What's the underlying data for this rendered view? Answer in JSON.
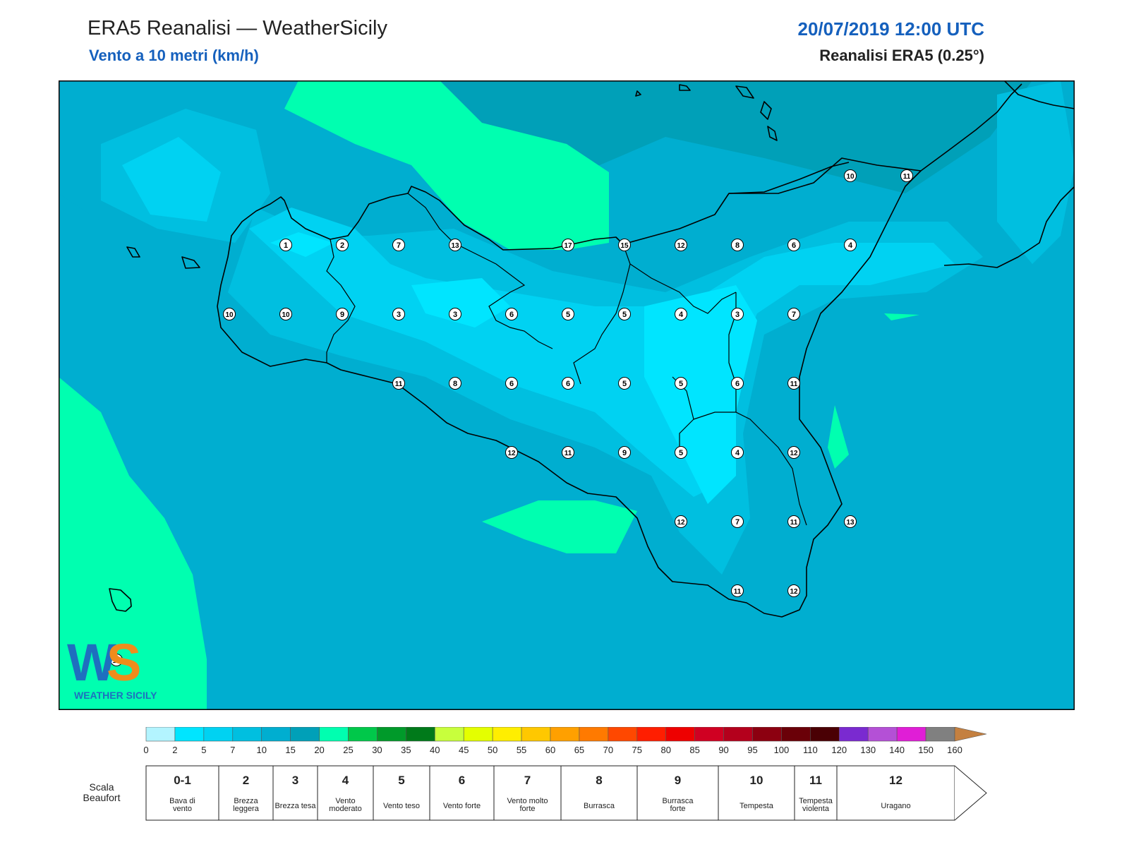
{
  "header": {
    "title": "ERA5 Reanalisi — WeatherSicily",
    "subtitle": "Vento a 10 metri (km/h)",
    "datetime": "20/07/2019 12:00 UTC",
    "model": "Reanalisi ERA5 (0.25°)"
  },
  "logo": {
    "text": "WEATHER SICILY",
    "letters": "WS"
  },
  "stations": [
    {
      "v": "1",
      "row": 0,
      "col": 0
    },
    {
      "v": "2",
      "row": 0,
      "col": 1
    },
    {
      "v": "7",
      "row": 0,
      "col": 2
    },
    {
      "v": "13",
      "row": 0,
      "col": 3
    },
    {
      "v": "17",
      "row": 0,
      "col": 5
    },
    {
      "v": "15",
      "row": 0,
      "col": 6
    },
    {
      "v": "12",
      "row": 0,
      "col": 7
    },
    {
      "v": "8",
      "row": 0,
      "col": 8
    },
    {
      "v": "6",
      "row": 0,
      "col": 9
    },
    {
      "v": "4",
      "row": 0,
      "col": 10
    },
    {
      "v": "10",
      "row": 1,
      "col": -1
    },
    {
      "v": "10",
      "row": 1,
      "col": 0
    },
    {
      "v": "9",
      "row": 1,
      "col": 1
    },
    {
      "v": "3",
      "row": 1,
      "col": 2
    },
    {
      "v": "3",
      "row": 1,
      "col": 3
    },
    {
      "v": "6",
      "row": 1,
      "col": 4
    },
    {
      "v": "5",
      "row": 1,
      "col": 5
    },
    {
      "v": "5",
      "row": 1,
      "col": 6
    },
    {
      "v": "4",
      "row": 1,
      "col": 7
    },
    {
      "v": "3",
      "row": 1,
      "col": 8
    },
    {
      "v": "7",
      "row": 1,
      "col": 9
    },
    {
      "v": "11",
      "row": 2,
      "col": 2
    },
    {
      "v": "8",
      "row": 2,
      "col": 3
    },
    {
      "v": "6",
      "row": 2,
      "col": 4
    },
    {
      "v": "6",
      "row": 2,
      "col": 5
    },
    {
      "v": "5",
      "row": 2,
      "col": 6
    },
    {
      "v": "5",
      "row": 2,
      "col": 7
    },
    {
      "v": "6",
      "row": 2,
      "col": 8
    },
    {
      "v": "11",
      "row": 2,
      "col": 9
    },
    {
      "v": "12",
      "row": 3,
      "col": 4
    },
    {
      "v": "11",
      "row": 3,
      "col": 5
    },
    {
      "v": "9",
      "row": 3,
      "col": 6
    },
    {
      "v": "5",
      "row": 3,
      "col": 7
    },
    {
      "v": "4",
      "row": 3,
      "col": 8
    },
    {
      "v": "12",
      "row": 3,
      "col": 9
    },
    {
      "v": "12",
      "row": 4,
      "col": 7
    },
    {
      "v": "7",
      "row": 4,
      "col": 8
    },
    {
      "v": "11",
      "row": 4,
      "col": 9
    },
    {
      "v": "13",
      "row": 4,
      "col": 10
    },
    {
      "v": "11",
      "row": 5,
      "col": 8
    },
    {
      "v": "12",
      "row": 5,
      "col": 9
    },
    {
      "v": "10",
      "row": -1,
      "col": 10
    },
    {
      "v": "11",
      "row": -1,
      "col": 11
    },
    {
      "v": "17",
      "row": 6,
      "col": -3
    }
  ],
  "colorbar": {
    "ticks": [
      "0",
      "2",
      "5",
      "7",
      "10",
      "15",
      "20",
      "25",
      "30",
      "35",
      "40",
      "45",
      "50",
      "55",
      "60",
      "65",
      "70",
      "75",
      "80",
      "85",
      "90",
      "95",
      "100",
      "110",
      "120",
      "130",
      "140",
      "150",
      "160"
    ],
    "colors": [
      "#b3f4ff",
      "#00e5ff",
      "#00d2f2",
      "#00bfe0",
      "#00aed0",
      "#00a0b8",
      "#00ffb0",
      "#00c84a",
      "#009a2a",
      "#007a1a",
      "#c8ff3c",
      "#e4ff00",
      "#ffee00",
      "#ffc800",
      "#ffa000",
      "#ff7a00",
      "#ff4800",
      "#ff1e00",
      "#ee0000",
      "#d00022",
      "#b4001c",
      "#8c0010",
      "#6a0008",
      "#4a0004",
      "#7a2ad0",
      "#b450d6",
      "#e01ed6",
      "#808080",
      "#5a5a5a",
      "#000000",
      "#7a4a2a",
      "#c48040"
    ]
  },
  "beaufort": {
    "label": "Scala Beaufort",
    "classes": [
      {
        "num": "0-1",
        "name": "Bava di vento"
      },
      {
        "num": "2",
        "name": "Brezza leggera"
      },
      {
        "num": "3",
        "name": "Brezza tesa"
      },
      {
        "num": "4",
        "name": "Vento moderato"
      },
      {
        "num": "5",
        "name": "Vento teso"
      },
      {
        "num": "6",
        "name": "Vento forte"
      },
      {
        "num": "7",
        "name": "Vento molto forte"
      },
      {
        "num": "8",
        "name": "Burrasca"
      },
      {
        "num": "9",
        "name": "Burrasca forte"
      },
      {
        "num": "10",
        "name": "Tempesta"
      },
      {
        "num": "11",
        "name": "Tempesta violenta"
      },
      {
        "num": "12",
        "name": "Uragano"
      }
    ]
  }
}
